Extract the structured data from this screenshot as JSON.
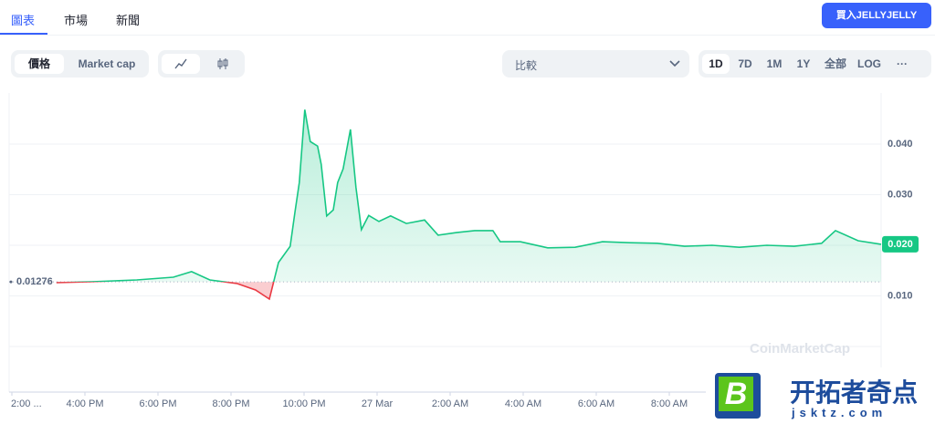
{
  "tabs": [
    "圖表",
    "市場",
    "新聞"
  ],
  "buy_button": "買入JELLYJELLY",
  "toggle": [
    "價格",
    "Market cap"
  ],
  "compare": "比較",
  "ranges": [
    "1D",
    "7D",
    "1M",
    "1Y",
    "全部",
    "LOG",
    "···"
  ],
  "watermark": "CoinMarketCap",
  "overlay": {
    "logo": "B",
    "title": "开拓者奇点",
    "site": "jsktz.com"
  },
  "chart_data": {
    "type": "line",
    "color": "#16c784",
    "below_color": "#ea3943",
    "x": [
      1.22,
      2.17,
      3.42,
      4.42,
      4.92,
      5.42,
      6.17,
      6.67,
      7.05,
      7.3,
      7.62,
      7.75,
      7.87,
      8.02,
      8.17,
      8.37,
      8.47,
      8.62,
      8.8,
      8.92,
      9.07,
      9.27,
      9.42,
      9.57,
      9.77,
      10.05,
      10.37,
      10.8,
      11.3,
      11.67,
      12.17,
      12.67,
      13.17,
      13.37,
      13.92,
      14.67,
      15.42,
      16.17,
      16.92,
      17.67,
      18.42,
      19.17,
      19.92,
      20.67,
      21.42,
      22.17,
      22.55,
      23.17,
      23.8
    ],
    "values": [
      0.01261,
      0.0128,
      0.01315,
      0.0137,
      0.0148,
      0.01315,
      0.01243,
      0.01117,
      0.00937,
      0.0166,
      0.0198,
      0.0265,
      0.0324,
      0.0468,
      0.0405,
      0.0396,
      0.036,
      0.0258,
      0.027,
      0.0324,
      0.0351,
      0.0429,
      0.0315,
      0.0231,
      0.0259,
      0.0247,
      0.0258,
      0.0243,
      0.025,
      0.022,
      0.0225,
      0.0229,
      0.0229,
      0.0207,
      0.0207,
      0.0195,
      0.0196,
      0.0207,
      0.0205,
      0.0204,
      0.0198,
      0.02,
      0.0196,
      0.02,
      0.0198,
      0.0204,
      0.0229,
      0.0209,
      0.0202
    ],
    "reference_value": 0.01276,
    "last_label": "0.020",
    "xlim": [
      0,
      23.9
    ],
    "xticks": [
      {
        "value": 0,
        "label": "2:00 ..."
      },
      {
        "value": 2,
        "label": "4:00 PM"
      },
      {
        "value": 4,
        "label": "6:00 PM"
      },
      {
        "value": 6,
        "label": "8:00 PM"
      },
      {
        "value": 8,
        "label": "10:00 PM"
      },
      {
        "value": 10,
        "label": "27 Mar"
      },
      {
        "value": 12,
        "label": "2:00 AM"
      },
      {
        "value": 14,
        "label": "4:00 AM"
      },
      {
        "value": 16,
        "label": "6:00 AM"
      },
      {
        "value": 18,
        "label": "8:00 AM"
      }
    ],
    "ylim": [
      0,
      0.05
    ],
    "yticks": [
      {
        "value": 0.01,
        "label": "0.010"
      },
      {
        "value": 0.02,
        "label": "0.020"
      },
      {
        "value": 0.03,
        "label": "0.030"
      },
      {
        "value": 0.04,
        "label": "0.040"
      }
    ],
    "grid": true
  }
}
